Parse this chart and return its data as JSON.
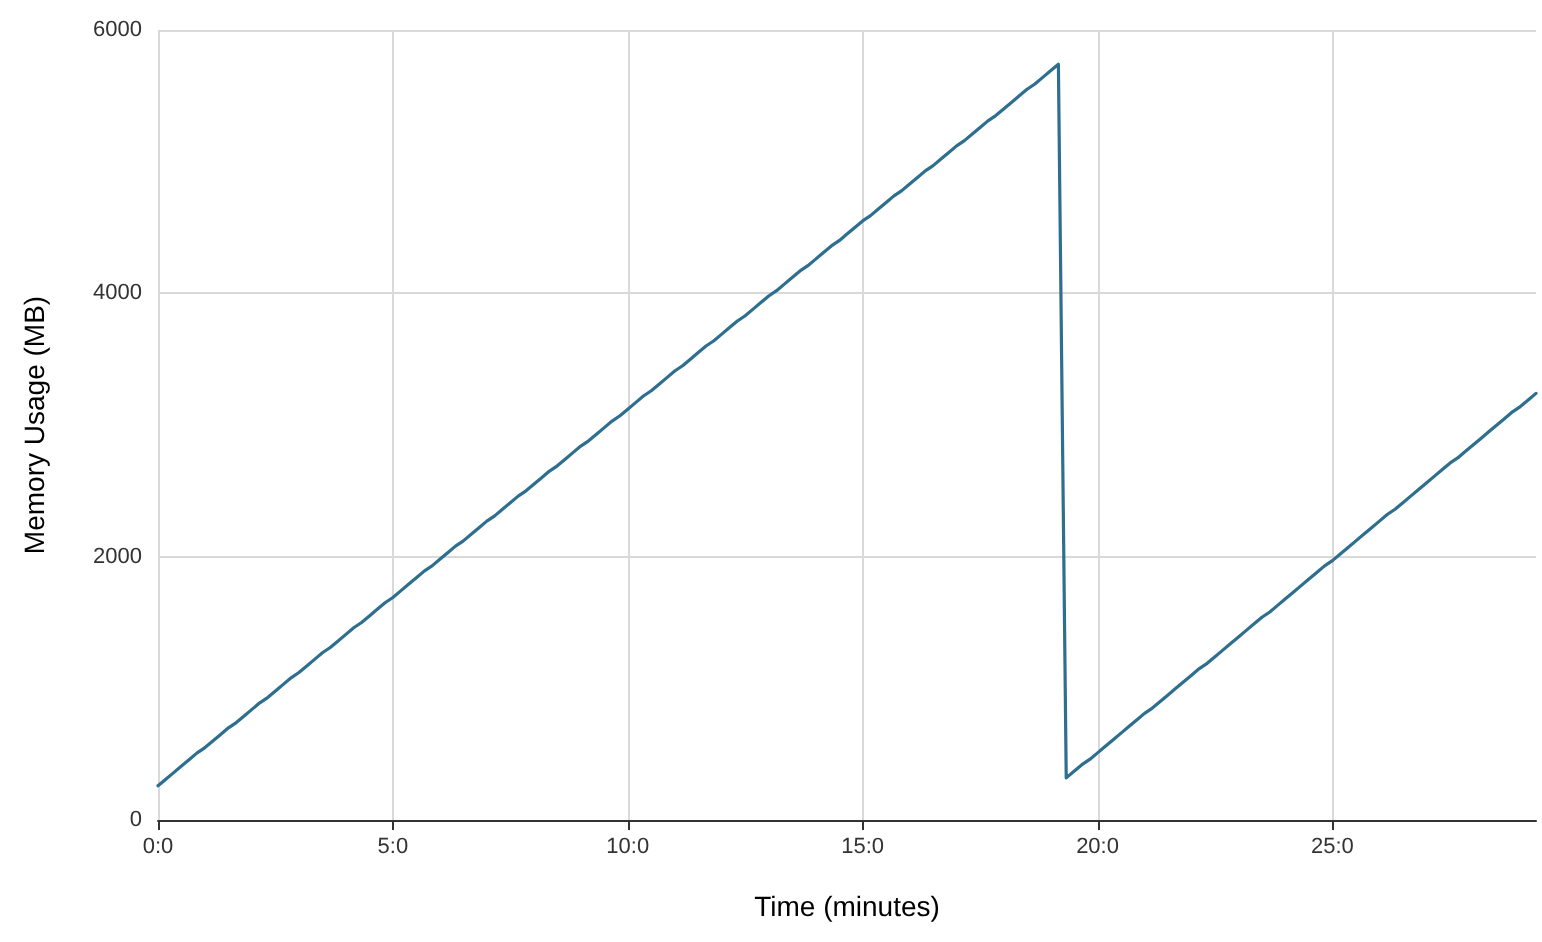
{
  "chart_data": {
    "type": "line",
    "xlabel": "Time (minutes)",
    "ylabel": "Memory Usage (MB)",
    "categories": [
      "0:0",
      null,
      null,
      null,
      null,
      null,
      null,
      null,
      null,
      null,
      null,
      null,
      null,
      null,
      null,
      null,
      null,
      null,
      null,
      null,
      null,
      null,
      null,
      null,
      null,
      null,
      null,
      null,
      null,
      null,
      "5:0",
      null,
      null,
      null,
      null,
      null,
      null,
      null,
      null,
      null,
      null,
      null,
      null,
      null,
      null,
      null,
      null,
      null,
      null,
      null,
      null,
      null,
      null,
      null,
      null,
      null,
      null,
      null,
      null,
      null,
      "10:0",
      null,
      null,
      null,
      null,
      null,
      null,
      null,
      null,
      null,
      null,
      null,
      null,
      null,
      null,
      null,
      null,
      null,
      null,
      null,
      null,
      null,
      null,
      null,
      null,
      null,
      null,
      null,
      null,
      null,
      "15:0",
      null,
      null,
      null,
      null,
      null,
      null,
      null,
      null,
      null,
      null,
      null,
      null,
      null,
      null,
      null,
      null,
      null,
      null,
      null,
      null,
      null,
      null,
      null,
      null,
      null,
      null,
      null,
      null,
      null,
      "20:0",
      null,
      null,
      null,
      null,
      null,
      null,
      null,
      null,
      null,
      null,
      null,
      null,
      null,
      null,
      null,
      null,
      null,
      null,
      null,
      null,
      null,
      null,
      null,
      null,
      null,
      null,
      null,
      null,
      null,
      "25:0",
      null,
      null,
      null,
      null,
      null,
      null,
      null,
      null,
      null,
      null,
      null,
      null,
      null,
      null,
      null,
      null,
      null,
      null,
      null,
      null,
      null,
      null,
      null,
      null,
      null,
      null
    ],
    "series": [
      {
        "color": "#2e6e8e",
        "values": [
          260,
          310,
          360,
          410,
          460,
          510,
          550,
          600,
          650,
          700,
          740,
          790,
          840,
          890,
          930,
          980,
          1030,
          1080,
          1120,
          1170,
          1220,
          1270,
          1310,
          1360,
          1410,
          1460,
          1500,
          1550,
          1600,
          1650,
          1690,
          1740,
          1790,
          1840,
          1890,
          1930,
          1980,
          2030,
          2080,
          2120,
          2170,
          2220,
          2270,
          2310,
          2360,
          2410,
          2460,
          2500,
          2550,
          2600,
          2650,
          2690,
          2740,
          2790,
          2840,
          2880,
          2930,
          2980,
          3030,
          3070,
          3120,
          3170,
          3220,
          3260,
          3310,
          3360,
          3410,
          3450,
          3500,
          3550,
          3600,
          3640,
          3690,
          3740,
          3790,
          3830,
          3880,
          3930,
          3980,
          4020,
          4070,
          4120,
          4170,
          4210,
          4260,
          4310,
          4360,
          4400,
          4450,
          4500,
          4550,
          4590,
          4640,
          4690,
          4740,
          4780,
          4830,
          4880,
          4930,
          4970,
          5020,
          5070,
          5120,
          5160,
          5210,
          5260,
          5310,
          5350,
          5400,
          5450,
          5500,
          5550,
          5590,
          5640,
          5690,
          5740,
          320,
          370,
          420,
          460,
          510,
          560,
          610,
          660,
          710,
          760,
          810,
          850,
          900,
          950,
          1000,
          1050,
          1100,
          1150,
          1190,
          1240,
          1290,
          1340,
          1390,
          1440,
          1490,
          1540,
          1580,
          1630,
          1680,
          1730,
          1780,
          1830,
          1880,
          1930,
          1970,
          2020,
          2070,
          2120,
          2170,
          2220,
          2270,
          2320,
          2360,
          2410,
          2460,
          2510,
          2560,
          2610,
          2660,
          2710,
          2750,
          2800,
          2850,
          2900,
          2950,
          3000,
          3050,
          3100,
          3140,
          3190,
          3240
        ]
      }
    ],
    "ylim": [
      0,
      6000
    ],
    "yticks": [
      0,
      2000,
      4000,
      6000
    ],
    "grid": true,
    "marker": "none",
    "line_style": "solid"
  }
}
